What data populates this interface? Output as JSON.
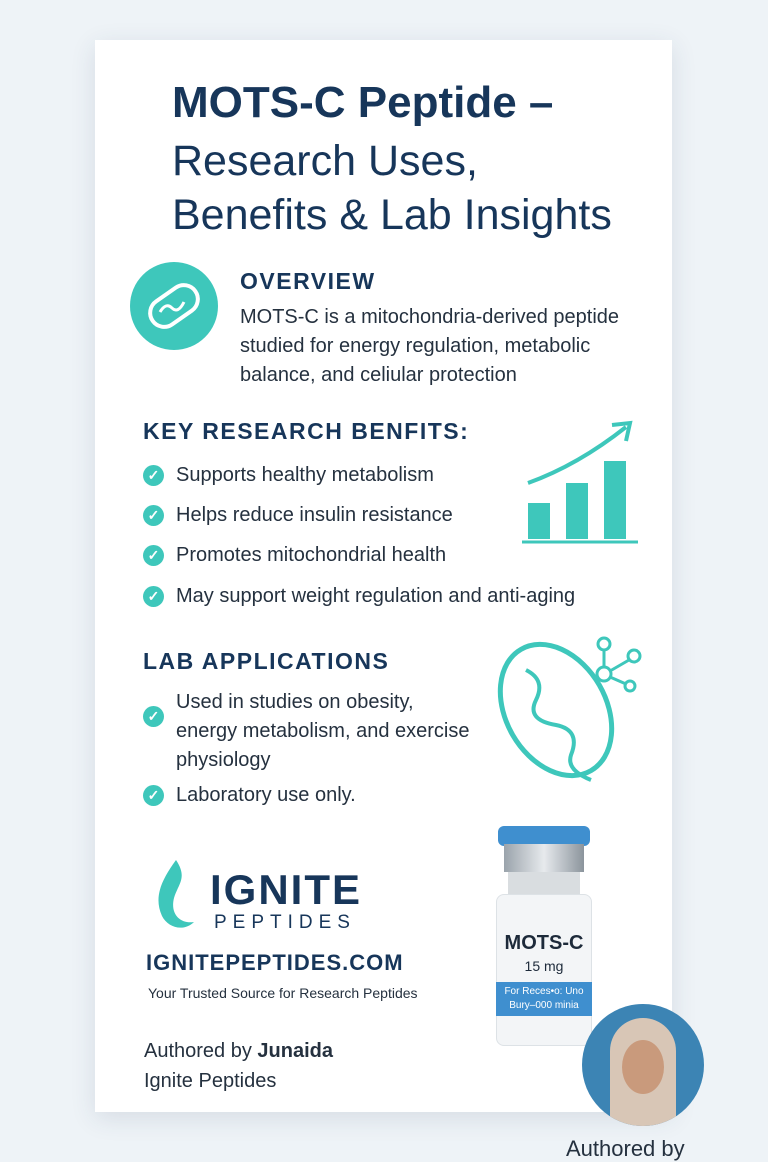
{
  "title": {
    "line1": "MOTS-C Peptide –",
    "line2": "Research Uses,",
    "line3": "Benefits & Lab Insights"
  },
  "overview": {
    "heading": "OVERVIEW",
    "lines": [
      "MOTS-C is a mitochondria-derived peptide",
      "studied for energy regulation, metabolic",
      "balance, and celiular protection"
    ]
  },
  "benefits": {
    "heading": "KEY RESEARCH BENFITS:",
    "items": [
      "Supports healthy metabolism",
      "Helps reduce insulin resistance",
      "Promotes mitochondrial health",
      "May support weight regulation and anti-aging"
    ]
  },
  "lab": {
    "heading": "LAB APPLICATIONS",
    "items": [
      "Used in studies on obesity, energy metabolism, and exercise physiology",
      "Laboratory use only."
    ],
    "item0_lines": [
      "Used in studies on obesity,",
      "energy metabolism, and exercise",
      "physiology"
    ]
  },
  "brand": {
    "name": "IGNITE",
    "sub": "PEPTIDES",
    "website": "IGNITEPEPTIDES.COM",
    "tagline": "Your Trusted Source for Research Peptides"
  },
  "vial": {
    "name": "MOTS-C",
    "dose": "15 mg",
    "band_line1": "For Reces•o: Uno",
    "band_line2": "Bury–000 minia"
  },
  "author": {
    "prefix": "Authored by ",
    "name": "Junaida",
    "org": "Ignite Peptides",
    "caption": "Authored by"
  },
  "colors": {
    "navy": "#17365a",
    "teal": "#3ec7bb",
    "vial_blue": "#3f8fcf"
  },
  "icons": {
    "check": "check-circle-icon",
    "overview": "mitochondria-badge-icon",
    "chart": "bar-chart-growth-icon",
    "mito": "mitochondria-outline-icon",
    "molecule": "molecule-icon",
    "logo": "flame-icon"
  }
}
